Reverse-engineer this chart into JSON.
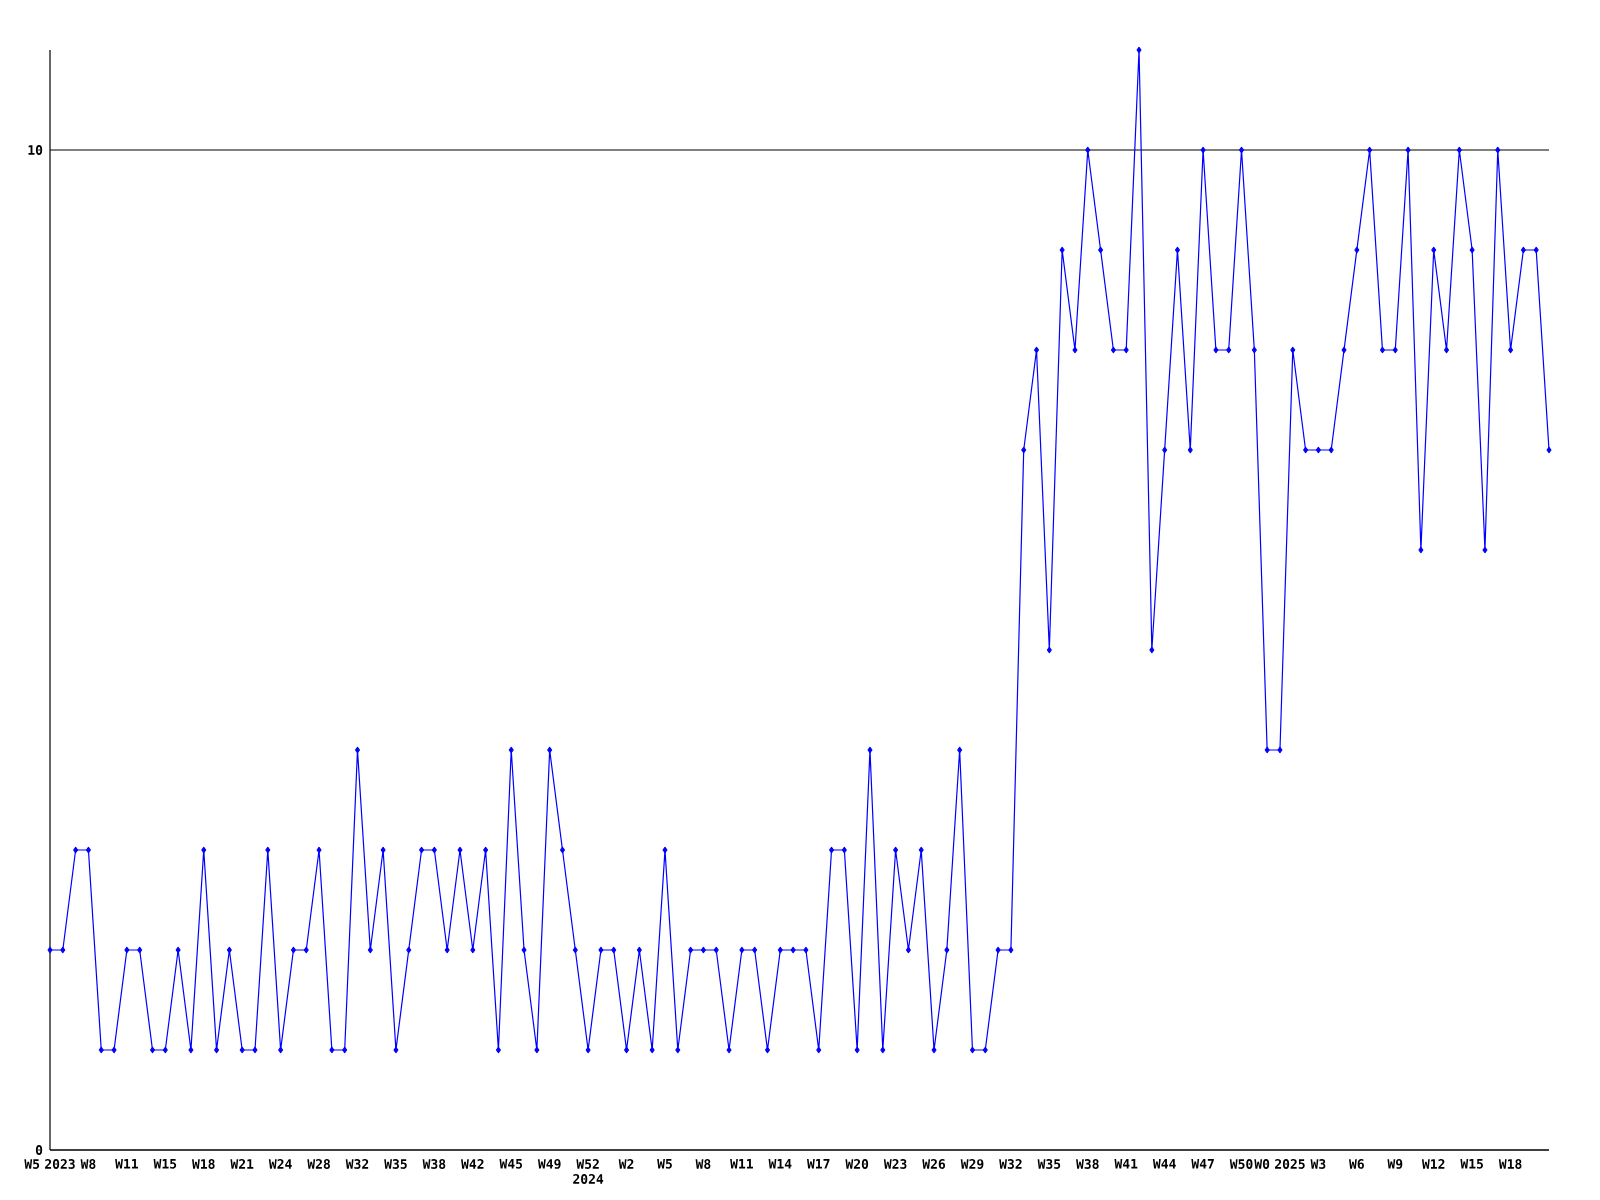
{
  "chart_data": {
    "type": "line",
    "categories": [
      "W5 2023",
      null,
      null,
      "W8",
      null,
      null,
      "W11",
      null,
      null,
      "W15",
      null,
      null,
      "W18",
      null,
      null,
      "W21",
      null,
      null,
      "W24",
      null,
      null,
      "W28",
      null,
      null,
      "W32",
      null,
      null,
      "W35",
      null,
      null,
      "W38",
      null,
      null,
      "W42",
      null,
      null,
      "W45",
      null,
      null,
      "W49",
      null,
      null,
      "W52 2024",
      null,
      null,
      "W2",
      null,
      null,
      "W5",
      null,
      null,
      "W8",
      null,
      null,
      "W11",
      null,
      null,
      "W14",
      null,
      null,
      "W17",
      null,
      null,
      "W20",
      null,
      null,
      "W23",
      null,
      null,
      "W26",
      null,
      null,
      "W29",
      null,
      null,
      "W32",
      null,
      null,
      "W35",
      null,
      null,
      "W38",
      null,
      null,
      "W41",
      null,
      null,
      "W44",
      null,
      null,
      "W47",
      null,
      null,
      "W50",
      null,
      null,
      "W0 2025",
      null,
      null,
      "W3",
      null,
      null,
      "W6",
      null,
      null,
      "W9",
      null,
      null,
      "W12",
      null,
      null,
      "W15",
      null,
      null,
      "W18",
      null,
      null,
      null
    ],
    "values": [
      2,
      2,
      3,
      3,
      1,
      1,
      2,
      2,
      1,
      1,
      2,
      1,
      3,
      1,
      2,
      1,
      1,
      3,
      1,
      2,
      2,
      3,
      1,
      1,
      4,
      2,
      3,
      1,
      2,
      3,
      3,
      2,
      3,
      2,
      3,
      1,
      4,
      2,
      1,
      4,
      3,
      2,
      1,
      2,
      2,
      1,
      2,
      1,
      3,
      1,
      2,
      2,
      2,
      1,
      2,
      2,
      1,
      2,
      2,
      2,
      1,
      3,
      3,
      1,
      4,
      1,
      3,
      2,
      3,
      1,
      2,
      4,
      1,
      1,
      2,
      2,
      7,
      8,
      5,
      9,
      8,
      10,
      9,
      8,
      8,
      11,
      5,
      7,
      9,
      7,
      10,
      8,
      8,
      10,
      8,
      4,
      4,
      8,
      7,
      7,
      7,
      8,
      9,
      10,
      8,
      8,
      10,
      6,
      9,
      8,
      10,
      9,
      6,
      10,
      8,
      9,
      9,
      7
    ],
    "color": "#0000ff",
    "ylim": [
      0,
      11
    ],
    "yticks": [
      0,
      10
    ],
    "grid": "y",
    "marker": "diamond",
    "line_style": "solid"
  }
}
